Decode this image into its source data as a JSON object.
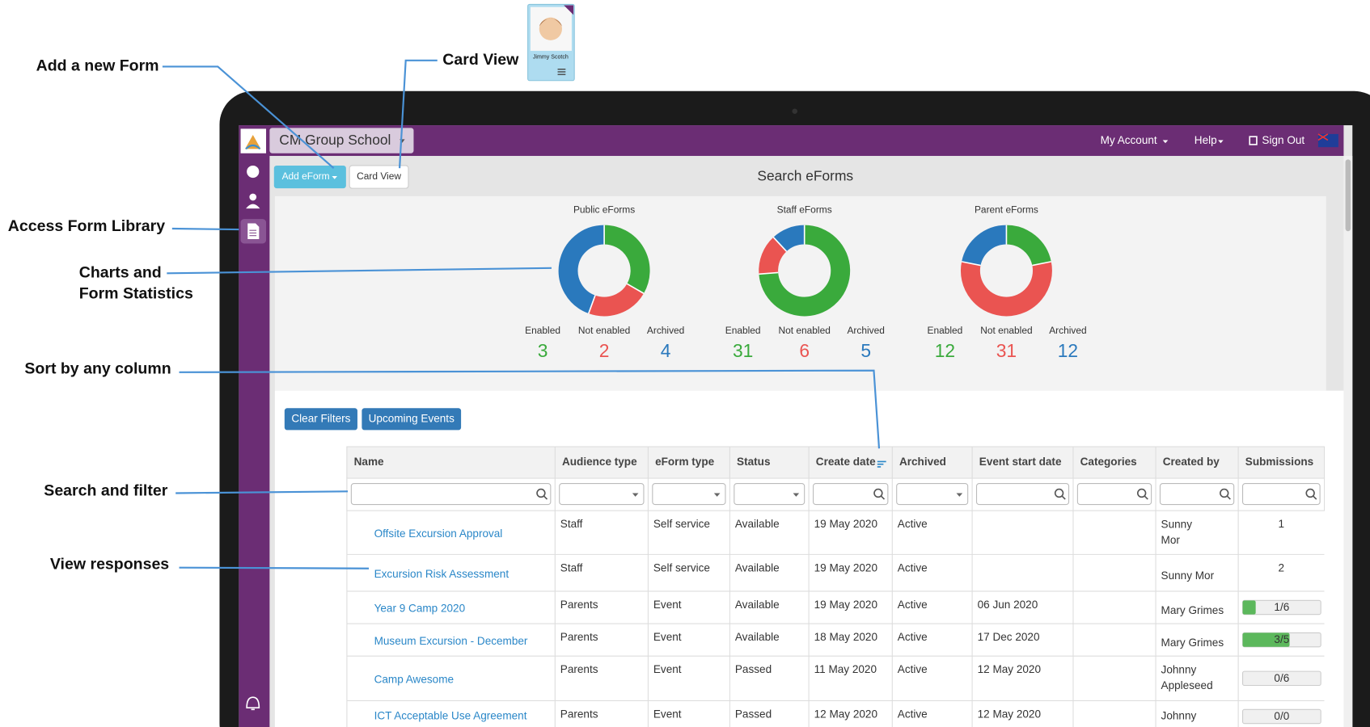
{
  "annotations": [
    [
      "Add a new Form"
    ],
    [
      "Card View"
    ],
    [
      "Access Form Library"
    ],
    [
      "Charts and",
      "Form Statistics"
    ],
    [
      "Sort by any column"
    ],
    [
      "Search and filter"
    ],
    [
      "View responses"
    ]
  ],
  "card": {
    "name": "Jimmy Scotch"
  },
  "header": {
    "school": "CM Group School",
    "menu": [
      "My Account",
      "Help",
      "Sign Out"
    ]
  },
  "toolbar": {
    "add": "Add eForm",
    "card_view": "Card View",
    "title": "Search eForms"
  },
  "stat_labels": [
    "Enabled",
    "Not enabled",
    "Archived"
  ],
  "stat_colors": [
    "#3aaa3c",
    "#ea5451",
    "#2a79bd"
  ],
  "stats": [
    {
      "title": "Public eForms",
      "values": [
        3,
        2,
        4
      ]
    },
    {
      "title": "Staff eForms",
      "values": [
        31,
        6,
        5
      ]
    },
    {
      "title": "Parent eForms",
      "values": [
        12,
        31,
        12
      ]
    }
  ],
  "filters": [
    "Clear Filters",
    "Upcoming Events"
  ],
  "table": {
    "columns": [
      "Name",
      "Audience type",
      "eForm type",
      "Status",
      "Create date",
      "Archived",
      "Event start date",
      "Categories",
      "Created by",
      "Submissions"
    ],
    "rows": [
      [
        "Offsite Excursion Approval",
        "Staff",
        "Self service",
        "Available",
        "19 May 2020",
        "Active",
        null,
        null,
        "Sunny Mor",
        1
      ],
      [
        "Excursion Risk Assessment",
        "Staff",
        "Self service",
        "Available",
        "19 May 2020",
        "Active",
        null,
        null,
        "Sunny Mor",
        2
      ],
      [
        "Year 9 Camp 2020",
        "Parents",
        "Event",
        "Available",
        "19 May 2020",
        "Active",
        "06 Jun 2020",
        null,
        "Mary Grimes",
        "1/6"
      ],
      [
        "Museum Excursion - December",
        "Parents",
        "Event",
        "Available",
        "18 May 2020",
        "Active",
        "17 Dec 2020",
        null,
        "Mary Grimes",
        "3/5"
      ],
      [
        "Camp Awesome",
        "Parents",
        "Event",
        "Passed",
        "11 May 2020",
        "Active",
        "12 May 2020",
        null,
        "Johnny Appleseed",
        "0/6"
      ],
      [
        "ICT Acceptable Use Agreement",
        "Parents",
        "Event",
        "Passed",
        "12 May 2020",
        "Active",
        "12 May 2020",
        null,
        "Johnny",
        "0/0"
      ]
    ]
  }
}
